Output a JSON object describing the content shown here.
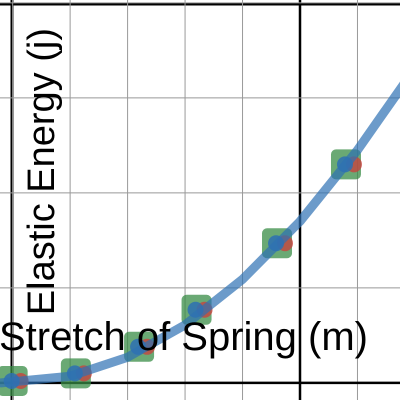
{
  "chart_data": {
    "type": "scatter",
    "x_label": "Stretch of Spring (m)",
    "y_label": "Elastic Energy (j)",
    "xlim": [
      -5.22,
      1.74
    ],
    "ylim": [
      -0.18,
      4.03
    ],
    "xticks": [
      -5,
      -4,
      -3,
      -2,
      -1,
      0,
      1
    ],
    "yticks": [
      0,
      1,
      2,
      3,
      4
    ],
    "grid": true,
    "series": [
      {
        "type": "scatter",
        "color": "#388c46",
        "x": [
          -5,
          -3.9,
          -2.8,
          -1.8,
          -0.4,
          0.8
        ],
        "values": [
          0.02,
          0.1,
          0.38,
          0.77,
          1.47,
          2.3
        ]
      },
      {
        "type": "line",
        "color": "#2d70b3",
        "x": [
          -5.2,
          -4,
          -3,
          -2,
          -1,
          0,
          1,
          1.8
        ],
        "values": [
          0.0,
          0.07,
          0.27,
          0.61,
          1.09,
          1.7,
          2.45,
          3.14
        ]
      }
    ]
  }
}
